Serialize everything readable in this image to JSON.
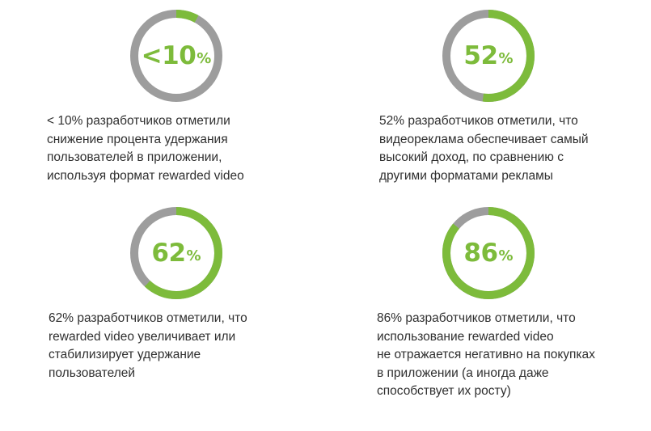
{
  "colors": {
    "accent": "#7dbb3b",
    "track": "#9d9d9d",
    "text": "#2f2f2f"
  },
  "chart_data": [
    {
      "type": "pie",
      "variant": "donut",
      "value_label": "<10",
      "unit": "%",
      "values": [
        8,
        92
      ],
      "caption": [
        "< 10% разработчиков отметили",
        "снижение процента удержания",
        "пользователей в приложении,",
        "используя формат rewarded video"
      ]
    },
    {
      "type": "pie",
      "variant": "donut",
      "value_label": "52",
      "unit": "%",
      "values": [
        52,
        48
      ],
      "caption": [
        "52% разработчиков отметили, что",
        "видеореклама обеспечивает самый",
        "высокий доход, по сравнению с",
        "другими форматами рекламы"
      ]
    },
    {
      "type": "pie",
      "variant": "donut",
      "value_label": "62",
      "unit": "%",
      "values": [
        62,
        38
      ],
      "caption": [
        "62% разработчиков отметили, что",
        "rewarded video увеличивает или",
        "стабилизирует удержание",
        "пользователей"
      ]
    },
    {
      "type": "pie",
      "variant": "donut",
      "value_label": "86",
      "unit": "%",
      "values": [
        86,
        14
      ],
      "caption": [
        "86% разработчиков отметили, что",
        "использование rewarded video",
        "не отражается негативно на покупках",
        "в приложении (а иногда даже",
        "способствует их росту)"
      ]
    }
  ]
}
